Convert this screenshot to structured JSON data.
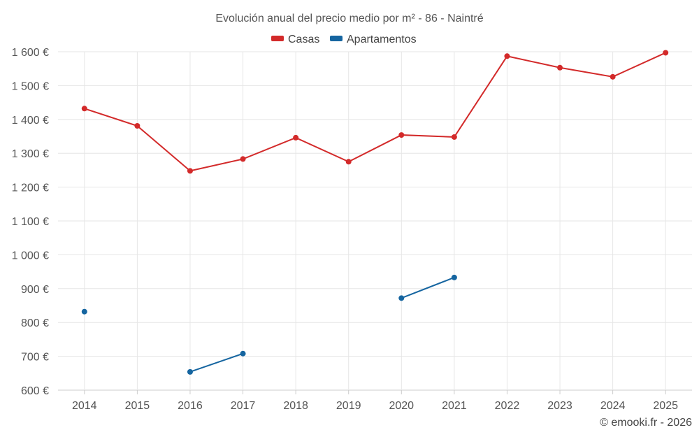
{
  "chart_data": {
    "type": "line",
    "title": "Evolución anual del precio medio por m² - 86 - Naintré",
    "categories": [
      "2014",
      "2015",
      "2016",
      "2017",
      "2018",
      "2019",
      "2020",
      "2021",
      "2022",
      "2023",
      "2024",
      "2025"
    ],
    "y_ticks": [
      600,
      700,
      800,
      900,
      1000,
      1100,
      1200,
      1300,
      1400,
      1500,
      1600
    ],
    "y_tick_labels": [
      "600 €",
      "700 €",
      "800 €",
      "900 €",
      "1 000 €",
      "1 100 €",
      "1 200 €",
      "1 300 €",
      "1 400 €",
      "1 500 €",
      "1 600 €"
    ],
    "ylim": [
      600,
      1600
    ],
    "grid": true,
    "legend_position": "top-center",
    "series": [
      {
        "name": "Casas",
        "color": "#d32a2a",
        "values": [
          1432,
          1381,
          1248,
          1283,
          1346,
          1275,
          1354,
          1348,
          1587,
          1553,
          1526,
          1597
        ]
      },
      {
        "name": "Apartamentos",
        "color": "#1565a0",
        "values": [
          832,
          null,
          654,
          708,
          null,
          null,
          872,
          933,
          null,
          null,
          null,
          null
        ]
      }
    ],
    "credit": "© emooki.fr - 2026"
  }
}
